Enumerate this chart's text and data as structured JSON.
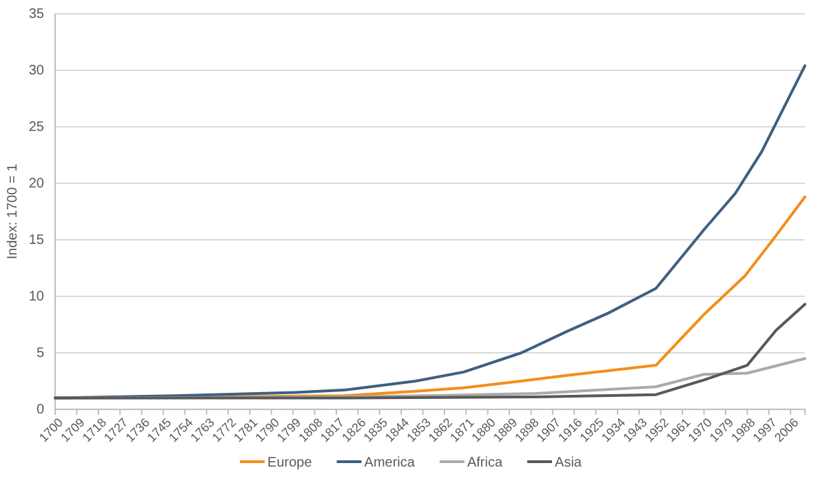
{
  "chart_data": {
    "type": "line",
    "ylabel": "Index: 1700 = 1",
    "xlim": [
      1700,
      2012
    ],
    "xticks": [
      1700,
      1709,
      1718,
      1727,
      1736,
      1745,
      1754,
      1763,
      1772,
      1781,
      1790,
      1799,
      1808,
      1817,
      1826,
      1835,
      1844,
      1853,
      1862,
      1871,
      1880,
      1889,
      1898,
      1907,
      1916,
      1925,
      1934,
      1943,
      1952,
      1961,
      1970,
      1979,
      1988,
      1997,
      2006
    ],
    "ylim": [
      0,
      35
    ],
    "yticks": [
      0,
      5,
      10,
      15,
      20,
      25,
      30,
      35
    ],
    "grid": "y",
    "legend": "bottom",
    "marker": "none",
    "line_style": "solid",
    "series": [
      {
        "name": "Europe",
        "color": "#f28e1c",
        "x": [
          1700,
          1820,
          1850,
          1870,
          1894,
          1913,
          1950,
          1970,
          1987,
          1999,
          2012
        ],
        "values": [
          1.0,
          1.2,
          1.6,
          1.9,
          2.5,
          3.0,
          3.9,
          8.4,
          11.8,
          15.1,
          18.8
        ]
      },
      {
        "name": "America",
        "color": "#3f5f80",
        "x": [
          1700,
          1750,
          1800,
          1820,
          1850,
          1870,
          1894,
          1913,
          1930,
          1950,
          1970,
          1983,
          1994,
          2012
        ],
        "values": [
          1.0,
          1.2,
          1.5,
          1.7,
          2.5,
          3.3,
          5.0,
          6.9,
          8.5,
          10.7,
          15.9,
          19.1,
          22.8,
          30.4
        ]
      },
      {
        "name": "Africa",
        "color": "#aaaaaa",
        "x": [
          1700,
          1820,
          1855,
          1900,
          1950,
          1970,
          1988,
          2012
        ],
        "values": [
          1.0,
          1.1,
          1.2,
          1.4,
          2.0,
          3.1,
          3.2,
          4.5
        ]
      },
      {
        "name": "Asia",
        "color": "#595959",
        "x": [
          1700,
          1820,
          1900,
          1950,
          1970,
          1988,
          2000,
          2012
        ],
        "values": [
          1.0,
          1.0,
          1.1,
          1.3,
          2.6,
          3.9,
          7.0,
          9.3
        ]
      }
    ]
  }
}
